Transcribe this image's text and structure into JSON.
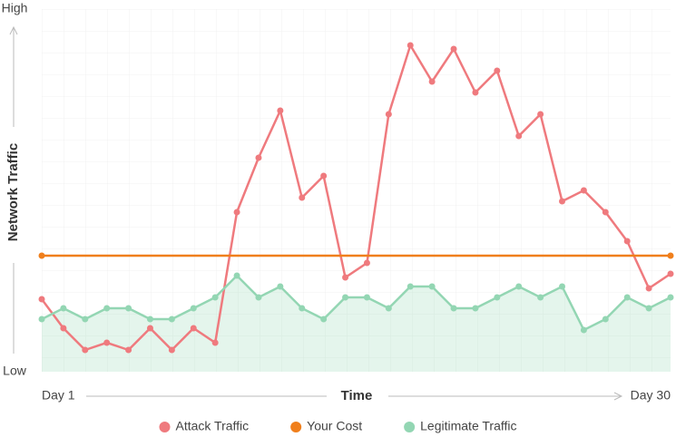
{
  "chart_data": {
    "type": "line",
    "xlabel": "Time",
    "ylabel": "Network Traffic",
    "x": [
      1,
      2,
      3,
      4,
      5,
      6,
      7,
      8,
      9,
      10,
      11,
      12,
      13,
      14,
      15,
      16,
      17,
      18,
      19,
      20,
      21,
      22,
      23,
      24,
      25,
      26,
      27,
      28,
      29,
      30
    ],
    "xlim": [
      1,
      30
    ],
    "xticks": [
      {
        "value": 1,
        "label": "Day 1"
      },
      {
        "value": 30,
        "label": "Day 30"
      }
    ],
    "ylim": [
      0,
      100
    ],
    "yticks": [
      {
        "value": 0,
        "label": "Low"
      },
      {
        "value": 100,
        "label": "High"
      }
    ],
    "series": [
      {
        "name": "Attack Traffic",
        "color": "#ef7a7e",
        "values": [
          20,
          12,
          6,
          8,
          6,
          12,
          6,
          12,
          8,
          44,
          59,
          72,
          48,
          54,
          26,
          30,
          71,
          90,
          80,
          89,
          77,
          83,
          65,
          71,
          47,
          50,
          44,
          36,
          23,
          27
        ]
      },
      {
        "name": "Your Cost",
        "color": "#f07f1c",
        "values": [
          32,
          32,
          32,
          32,
          32,
          32,
          32,
          32,
          32,
          32,
          32,
          32,
          32,
          32,
          32,
          32,
          32,
          32,
          32,
          32,
          32,
          32,
          32,
          32,
          32,
          32,
          32,
          32,
          32,
          32
        ]
      },
      {
        "name": "Legitimate Traffic",
        "color": "#93d6b3",
        "area": true,
        "values": [
          14.5,
          17.5,
          14.5,
          17.5,
          17.5,
          14.5,
          14.5,
          17.5,
          20.5,
          26.5,
          20.5,
          23.5,
          17.5,
          14.5,
          20.5,
          20.5,
          17.5,
          23.5,
          23.5,
          17.5,
          17.5,
          20.5,
          23.5,
          20.5,
          23.5,
          11.5,
          14.5,
          20.5,
          17.5,
          20.5
        ]
      }
    ]
  }
}
